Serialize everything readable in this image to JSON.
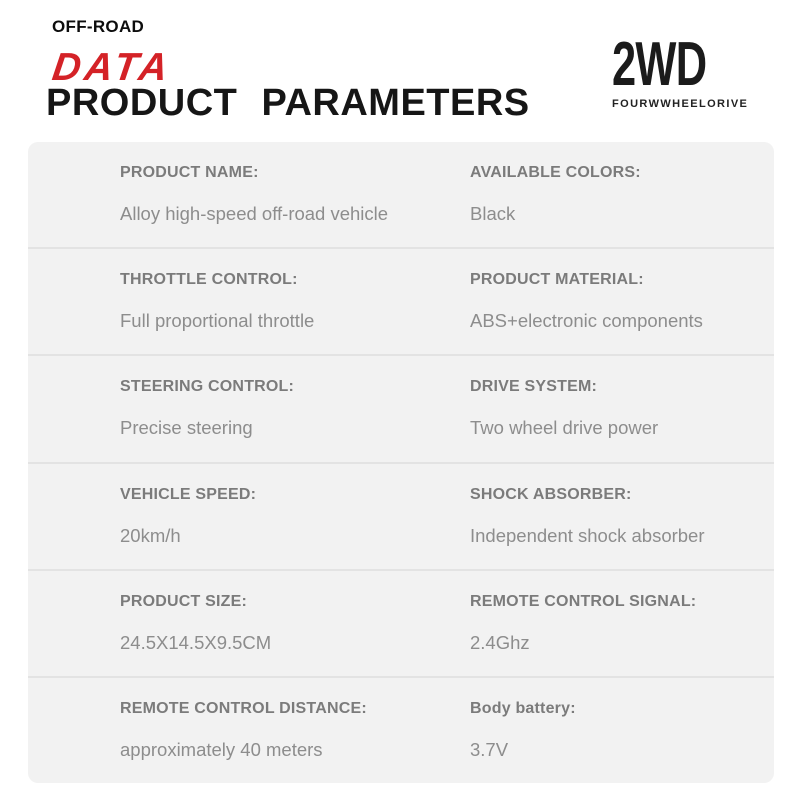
{
  "header": {
    "kicker": "OFF-ROAD",
    "brand": "DATA",
    "title": "PRODUCT PARAMETERS",
    "logo_main": "2WD",
    "logo_sub": "FOURWWHEELORIVE"
  },
  "colors": {
    "accent_red": "#d42227",
    "title_black": "#161616",
    "panel_bg": "#f2f2f2",
    "divider": "#e3e3e3",
    "label_gray": "#7b7b7b",
    "value_gray": "#8d8d8d"
  },
  "spec_table": {
    "rows": [
      {
        "left": {
          "label": "PRODUCT NAME:",
          "value": "Alloy high-speed off-road vehicle"
        },
        "right": {
          "label": "AVAILABLE COLORS:",
          "value": "Black"
        }
      },
      {
        "left": {
          "label": "THROTTLE CONTROL:",
          "value": "Full proportional throttle"
        },
        "right": {
          "label": "PRODUCT MATERIAL:",
          "value": "ABS+electronic components"
        }
      },
      {
        "left": {
          "label": "STEERING CONTROL:",
          "value": "Precise steering"
        },
        "right": {
          "label": "DRIVE SYSTEM:",
          "value": "Two wheel drive power"
        }
      },
      {
        "left": {
          "label": "VEHICLE SPEED:",
          "value": "20km/h"
        },
        "right": {
          "label": "SHOCK ABSORBER:",
          "value": "Independent shock absorber"
        }
      },
      {
        "left": {
          "label": "PRODUCT SIZE:",
          "value": "24.5X14.5X9.5CM"
        },
        "right": {
          "label": "REMOTE CONTROL SIGNAL:",
          "value": "2.4Ghz"
        }
      },
      {
        "left": {
          "label": "REMOTE CONTROL DISTANCE:",
          "value": "approximately 40 meters"
        },
        "right": {
          "label": "Body battery:",
          "value": "3.7V"
        }
      }
    ]
  }
}
